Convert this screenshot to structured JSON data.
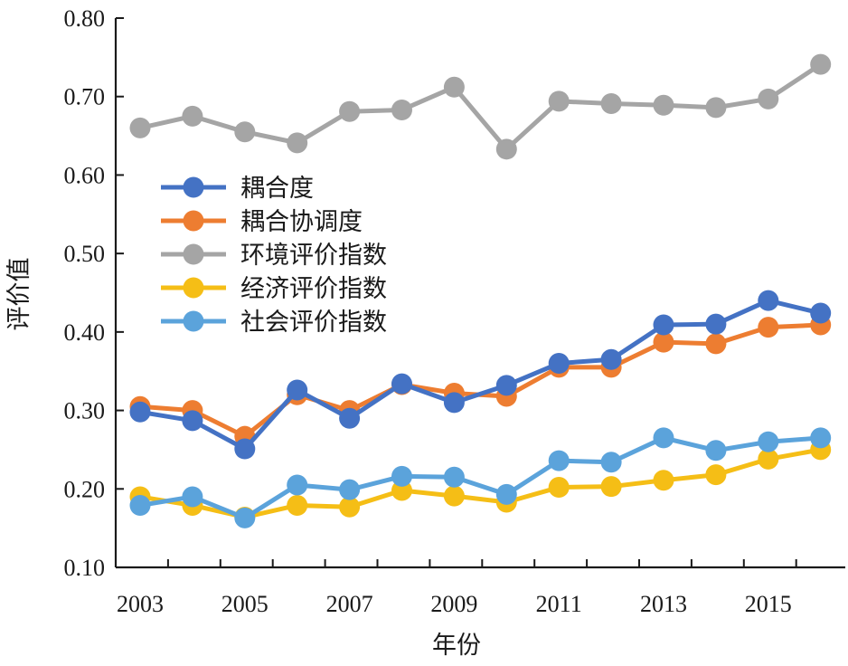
{
  "chart_data": {
    "type": "line",
    "xlabel": "年份",
    "ylabel": "评价值",
    "ylim": [
      0.1,
      0.8
    ],
    "y_ticks": [
      "0.10",
      "0.20",
      "0.30",
      "0.40",
      "0.50",
      "0.60",
      "0.70",
      "0.80"
    ],
    "x": [
      2003,
      2004,
      2005,
      2006,
      2007,
      2008,
      2009,
      2010,
      2011,
      2012,
      2013,
      2014,
      2015,
      2016
    ],
    "x_tick_labels": [
      "2003",
      "2005",
      "2007",
      "2009",
      "2011",
      "2013",
      "2015"
    ],
    "legend_position": "left-middle",
    "series": [
      {
        "name": "耦合度",
        "color": "#4472C4",
        "values": [
          0.298,
          0.287,
          0.251,
          0.326,
          0.29,
          0.334,
          0.31,
          0.332,
          0.36,
          0.365,
          0.409,
          0.41,
          0.44,
          0.424
        ]
      },
      {
        "name": "耦合协调度",
        "color": "#ED7D31",
        "values": [
          0.305,
          0.3,
          0.267,
          0.32,
          0.3,
          0.333,
          0.322,
          0.318,
          0.355,
          0.355,
          0.387,
          0.385,
          0.406,
          0.409
        ]
      },
      {
        "name": "环境评价指数",
        "color": "#A5A5A5",
        "values": [
          0.66,
          0.675,
          0.655,
          0.641,
          0.681,
          0.683,
          0.712,
          0.633,
          0.694,
          0.691,
          0.689,
          0.686,
          0.697,
          0.741
        ]
      },
      {
        "name": "经济评价指数",
        "color": "#F5BE16",
        "values": [
          0.19,
          0.179,
          0.164,
          0.179,
          0.177,
          0.198,
          0.191,
          0.183,
          0.202,
          0.203,
          0.211,
          0.218,
          0.238,
          0.25
        ]
      },
      {
        "name": "社会评价指数",
        "color": "#5BA3DB",
        "values": [
          0.179,
          0.19,
          0.163,
          0.205,
          0.199,
          0.216,
          0.215,
          0.193,
          0.236,
          0.234,
          0.265,
          0.249,
          0.26,
          0.265
        ]
      }
    ]
  }
}
